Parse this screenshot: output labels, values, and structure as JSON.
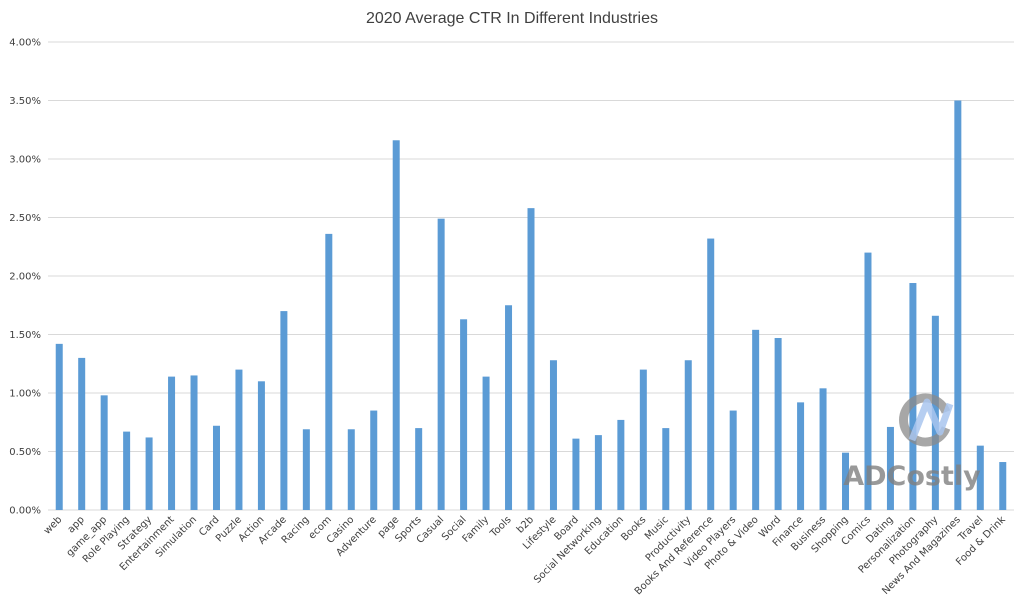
{
  "chart_data": {
    "type": "bar",
    "title": "2020 Average CTR In Different Industries",
    "xlabel": "",
    "ylabel": "",
    "ylim": [
      0,
      0.04
    ],
    "y_ticks": [
      "0.00%",
      "0.50%",
      "1.00%",
      "1.50%",
      "2.00%",
      "2.50%",
      "3.00%",
      "3.50%",
      "4.00%"
    ],
    "grid": true,
    "legend": "none",
    "bar_color": "#5b9bd5",
    "categories": [
      "web",
      "app",
      "game_app",
      "Role Playing",
      "Strategy",
      "Entertainment",
      "Simulation",
      "Card",
      "Puzzle",
      "Action",
      "Arcade",
      "Racing",
      "ecom",
      "Casino",
      "Adventure",
      "page",
      "Sports",
      "Casual",
      "Social",
      "Family",
      "Tools",
      "b2b",
      "Lifestyle",
      "Board",
      "Social Networking",
      "Education",
      "Books",
      "Music",
      "Productivity",
      "Books And Reference",
      "Video Players",
      "Photo & Video",
      "Word",
      "Finance",
      "Business",
      "Shopping",
      "Comics",
      "Dating",
      "Personalization",
      "Photography",
      "News And Magazines",
      "Travel",
      "Food & Drink"
    ],
    "values": [
      0.0142,
      0.013,
      0.0098,
      0.0067,
      0.0062,
      0.0114,
      0.0115,
      0.0072,
      0.012,
      0.011,
      0.017,
      0.0069,
      0.0236,
      0.0069,
      0.0085,
      0.0316,
      0.007,
      0.0249,
      0.0163,
      0.0114,
      0.0175,
      0.0258,
      0.0128,
      0.0061,
      0.0064,
      0.0077,
      0.012,
      0.007,
      0.0128,
      0.0232,
      0.0085,
      0.0154,
      0.0147,
      0.0092,
      0.0104,
      0.0049,
      0.022,
      0.0071,
      0.0194,
      0.0166,
      0.035,
      0.0055,
      0.0041
    ]
  },
  "watermark": {
    "text": "ADCostly",
    "icon": "adcostly-logo-icon",
    "color": "#7f7f7f"
  }
}
